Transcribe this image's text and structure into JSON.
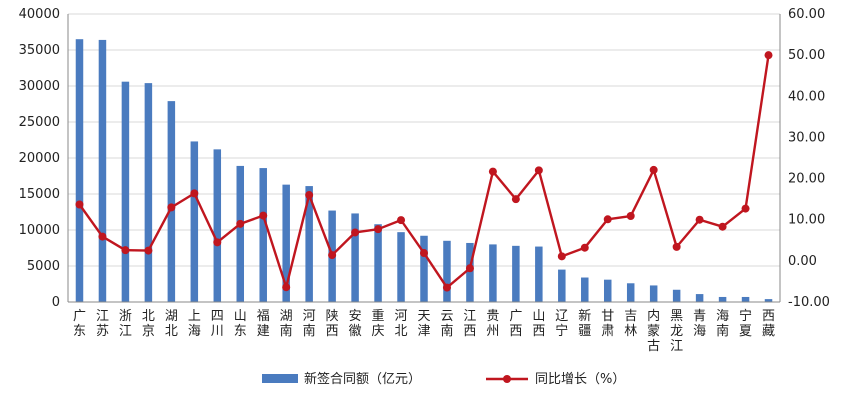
{
  "chart_data": {
    "type": "bar+line",
    "categories": [
      "广东",
      "江苏",
      "浙江",
      "北京",
      "湖北",
      "上海",
      "四川",
      "山东",
      "福建",
      "湖南",
      "河南",
      "陕西",
      "安徽",
      "重庆",
      "河北",
      "天津",
      "云南",
      "江西",
      "贵州",
      "广西",
      "山西",
      "辽宁",
      "新疆",
      "甘肃",
      "吉林",
      "内蒙古",
      "黑龙江",
      "青海",
      "海南",
      "宁夏",
      "西藏"
    ],
    "series": [
      {
        "name": "新签合同额（亿元）",
        "type": "bar",
        "axis": "left",
        "color": "#4a7bbf",
        "values": [
          36500,
          36400,
          30600,
          30400,
          27900,
          22300,
          21200,
          18900,
          18600,
          16300,
          16100,
          12700,
          12300,
          10800,
          9700,
          9200,
          8500,
          8200,
          8000,
          7800,
          7700,
          4500,
          3400,
          3100,
          2600,
          2300,
          1700,
          1100,
          700,
          700,
          400
        ]
      },
      {
        "name": "同比增长（%）",
        "type": "line",
        "axis": "right",
        "color": "#c0161f",
        "values": [
          13.7,
          5.9,
          2.6,
          2.5,
          13.0,
          16.4,
          4.5,
          9.0,
          11.0,
          -6.4,
          16.0,
          1.4,
          6.9,
          7.7,
          9.9,
          1.9,
          -6.5,
          -1.8,
          21.7,
          15.0,
          22.0,
          1.1,
          3.2,
          10.1,
          10.9,
          22.1,
          3.4,
          10.0,
          8.3,
          12.7,
          50.0
        ]
      }
    ],
    "y_left": {
      "min": 0,
      "max": 40000,
      "step": 5000
    },
    "y_right": {
      "min": -10,
      "max": 60,
      "step": 10,
      "decimals": 2
    },
    "gridlines": true,
    "legend_position": "bottom"
  }
}
